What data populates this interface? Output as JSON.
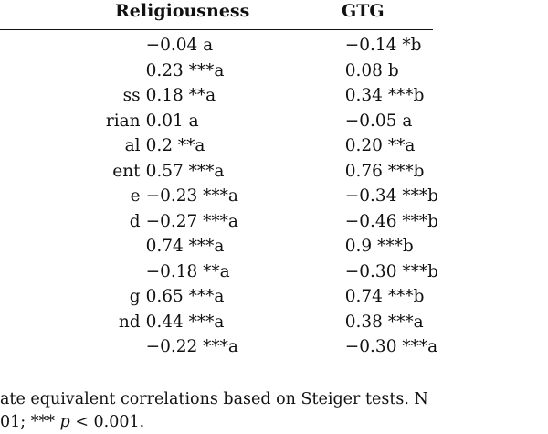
{
  "header": {
    "religiousness": "Religiousness",
    "gtg": "GTG"
  },
  "rows": [
    {
      "label": "",
      "religiousness": "−0.04 a",
      "gtg": "−0.14 *b"
    },
    {
      "label": "",
      "religiousness": "0.23 ***a",
      "gtg": "0.08 b"
    },
    {
      "label": "ss",
      "religiousness": "0.18 **a",
      "gtg": "0.34 ***b"
    },
    {
      "label": "rian",
      "religiousness": "0.01 a",
      "gtg": "−0.05 a"
    },
    {
      "label": "al",
      "religiousness": "0.2 **a",
      "gtg": "0.20 **a"
    },
    {
      "label": "ent",
      "religiousness": "0.57 ***a",
      "gtg": "0.76 ***b"
    },
    {
      "label": "e",
      "religiousness": "−0.23 ***a",
      "gtg": "−0.34 ***b"
    },
    {
      "label": "d",
      "religiousness": "−0.27 ***a",
      "gtg": "−0.46 ***b"
    },
    {
      "label": "",
      "religiousness": "0.74 ***a",
      "gtg": "0.9 ***b"
    },
    {
      "label": "",
      "religiousness": "−0.18 **a",
      "gtg": "−0.30 ***b"
    },
    {
      "label": "g",
      "religiousness": "0.65 ***a",
      "gtg": "0.74 ***b"
    },
    {
      "label": "nd",
      "religiousness": "0.44 ***a",
      "gtg": "0.38 ***a"
    },
    {
      "label": "",
      "religiousness": "−0.22 ***a",
      "gtg": "−0.30 ***a"
    }
  ],
  "footnote": {
    "line1": "ate equivalent correlations based on Steiger tests. N",
    "line2": "01; *** p < 0.001."
  }
}
